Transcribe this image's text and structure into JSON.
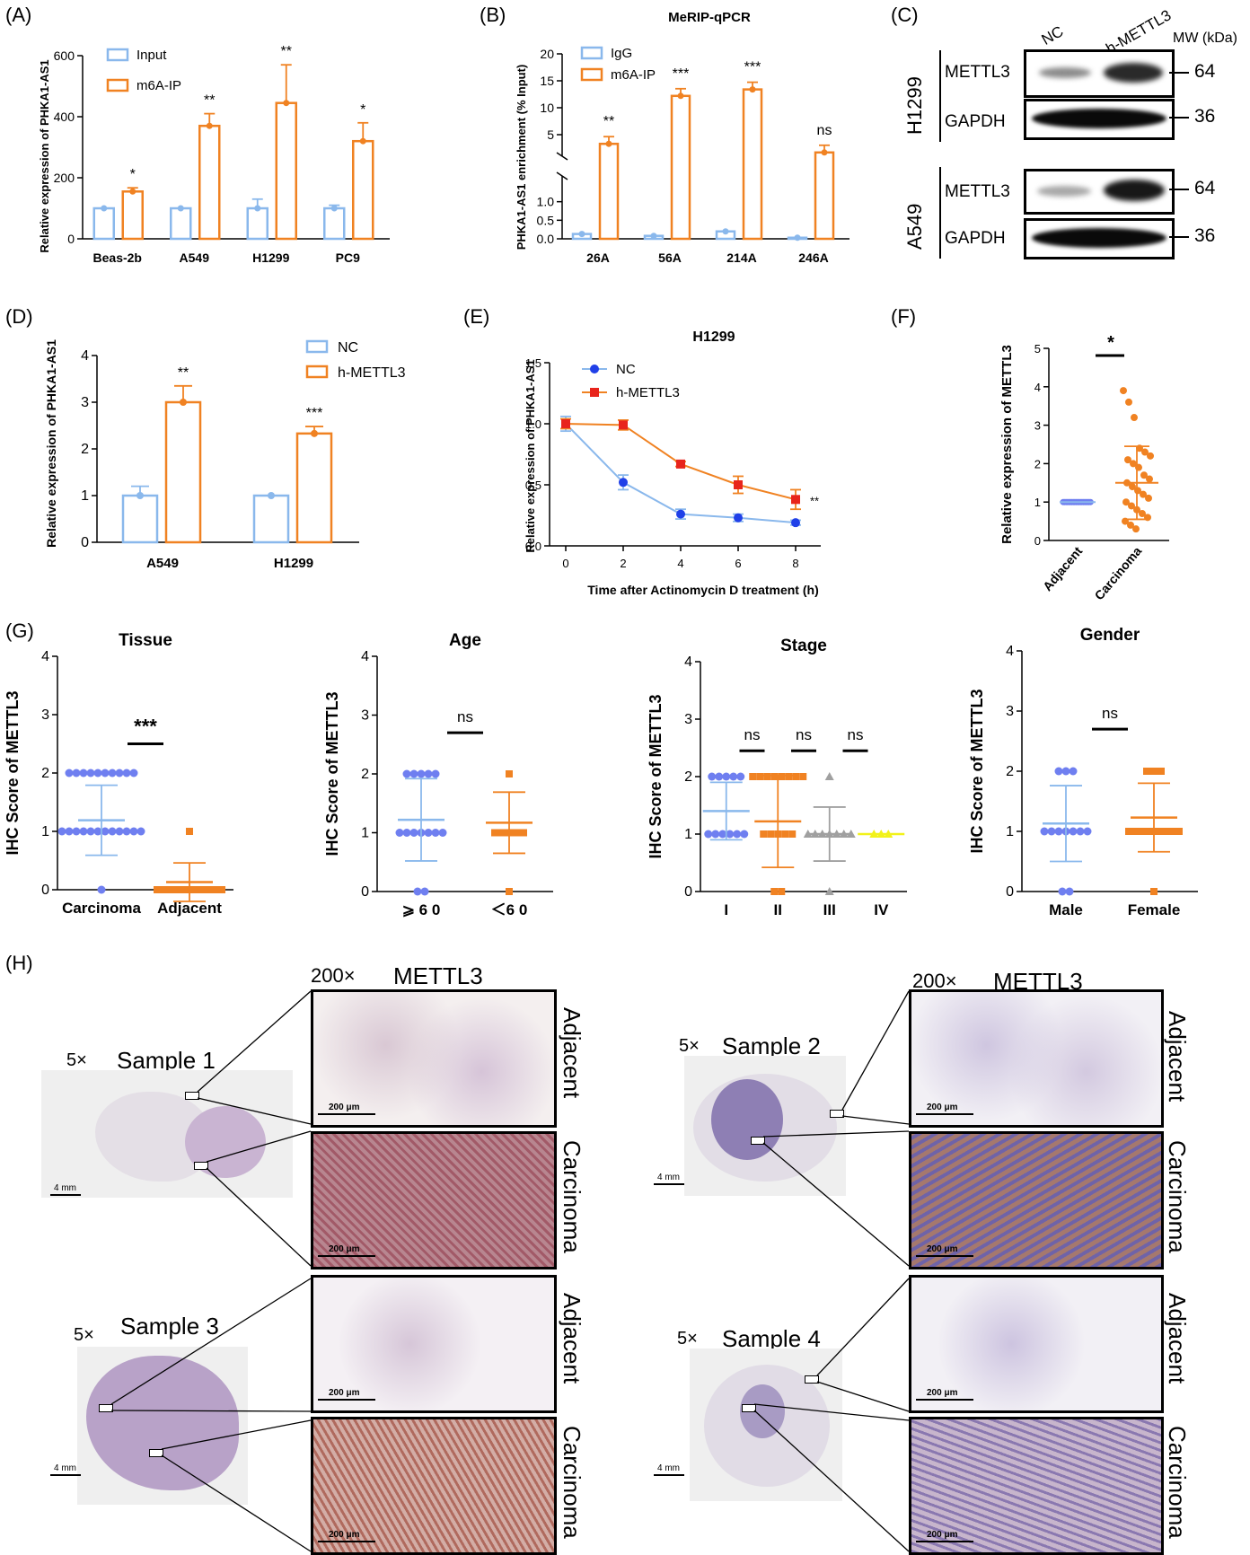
{
  "panels": {
    "A": "(A)",
    "B": "(B)",
    "C": "(C)",
    "D": "(D)",
    "E": "(E)",
    "F": "(F)",
    "G": "(G)",
    "H": "(H)"
  },
  "colors": {
    "blue": "#8ab8ec",
    "orange": "#f08222",
    "blue_dot": "#6f7ff0",
    "red": "#e8241c",
    "dotblue": "#3a4fe0",
    "gray": "#a0a0a0",
    "yellow": "#f2f21a"
  },
  "chart_data": [
    {
      "id": "A",
      "type": "bar",
      "title": "",
      "ylabel": "Relative expression of PHKA1-AS1",
      "categories": [
        "Beas-2b",
        "A549",
        "H1299",
        "PC9"
      ],
      "ylim": [
        0,
        600
      ],
      "yticks": [
        "0",
        "200",
        "400",
        "600"
      ],
      "series": [
        {
          "name": "Input",
          "values": [
            100,
            100,
            100,
            100
          ],
          "err": [
            0,
            0,
            30,
            10
          ]
        },
        {
          "name": "m6A-IP",
          "values": [
            155,
            370,
            445,
            320
          ],
          "err": [
            12,
            40,
            125,
            60
          ]
        }
      ],
      "sig": [
        "*",
        "**",
        "**",
        "*"
      ]
    },
    {
      "id": "B",
      "type": "bar",
      "title": "MeRIP-qPCR",
      "ylabel": "PHKA1-AS1 enrichment (% Input)",
      "categories": [
        "26A",
        "56A",
        "214A",
        "246A"
      ],
      "yticks": [
        "0.0",
        "0.5",
        "1.0",
        "5",
        "10",
        "15",
        "20"
      ],
      "series": [
        {
          "name": "IgG",
          "values": [
            0.13,
            0.08,
            0.2,
            0.03
          ]
        },
        {
          "name": "m6A-IP",
          "values": [
            3.3,
            12.2,
            13.4,
            0.68
          ]
        }
      ],
      "sig": [
        "**",
        "***",
        "***",
        "ns"
      ]
    },
    {
      "id": "D",
      "type": "bar",
      "title": "",
      "ylabel": "Relative expression of PHKA1-AS1",
      "categories": [
        "A549",
        "H1299"
      ],
      "ylim": [
        0,
        4
      ],
      "yticks": [
        "0",
        "1",
        "2",
        "3",
        "4"
      ],
      "series": [
        {
          "name": "NC",
          "values": [
            1.0,
            1.0
          ],
          "err": [
            0.2,
            0.02
          ]
        },
        {
          "name": "h-METTL3",
          "values": [
            3.0,
            2.33
          ],
          "err": [
            0.35,
            0.15
          ]
        }
      ],
      "sig": [
        "**",
        "***"
      ]
    },
    {
      "id": "E",
      "type": "line",
      "title": "H1299",
      "xlabel": "Time after Actinomycin D treatment (h)",
      "ylabel": "Relative expression of PHKA1-AS1",
      "x": [
        0,
        2,
        4,
        6,
        8
      ],
      "xlim": [
        0,
        8
      ],
      "ylim": [
        0,
        1.5
      ],
      "yticks": [
        "0.0",
        "0.5",
        "1.0",
        "1.5"
      ],
      "series": [
        {
          "name": "NC",
          "values": [
            1.0,
            0.52,
            0.26,
            0.23,
            0.19
          ],
          "err": [
            0.06,
            0.06,
            0.04,
            0.03,
            0.02
          ]
        },
        {
          "name": "h-METTL3",
          "values": [
            1.0,
            0.99,
            0.67,
            0.5,
            0.38
          ],
          "err": [
            0.04,
            0.04,
            0.02,
            0.07,
            0.08
          ]
        }
      ],
      "sig": "**"
    },
    {
      "id": "F",
      "type": "scatter",
      "ylabel": "Relative expression of METTL3",
      "categories": [
        "Adjacent",
        "Carcinoma"
      ],
      "ylim": [
        0,
        5
      ],
      "yticks": [
        "0",
        "1",
        "2",
        "3",
        "4",
        "5"
      ],
      "mean": [
        1.0,
        1.5
      ],
      "sd": [
        0.02,
        0.95
      ],
      "points_carcinoma": [
        3.9,
        3.6,
        3.2,
        2.4,
        2.3,
        2.2,
        2.1,
        2.0,
        1.9,
        1.7,
        1.6,
        1.5,
        1.4,
        1.3,
        1.2,
        1.1,
        1.0,
        0.9,
        0.8,
        0.7,
        0.6,
        0.5,
        0.4,
        0.3
      ],
      "sig": "*"
    },
    {
      "id": "G1",
      "type": "scatter",
      "title": "Tissue",
      "ylabel": "IHC Score of METTL3",
      "categories": [
        "Carcinoma",
        "Adjacent"
      ],
      "ylim": [
        0,
        4
      ],
      "yticks": [
        "0",
        "1",
        "2",
        "3",
        "4"
      ],
      "mean": [
        1.19,
        0.13
      ],
      "sd": [
        0.6,
        0.33
      ],
      "sig": "***"
    },
    {
      "id": "G2",
      "type": "scatter",
      "title": "Age",
      "ylabel": "IHC Score of METTL3",
      "categories": [
        "⩾ 6 0",
        "＜6 0"
      ],
      "ylim": [
        0,
        4
      ],
      "yticks": [
        "0",
        "1",
        "2",
        "3",
        "4"
      ],
      "mean": [
        1.22,
        1.17
      ],
      "sd": [
        0.7,
        0.52
      ],
      "sig": "ns"
    },
    {
      "id": "G3",
      "type": "scatter",
      "title": "Stage",
      "ylabel": "IHC Score of METTL3",
      "categories": [
        "I",
        "II",
        "III",
        "IV"
      ],
      "ylim": [
        0,
        4
      ],
      "yticks": [
        "0",
        "1",
        "2",
        "3",
        "4"
      ],
      "mean": [
        1.4,
        1.22,
        1.0,
        1.0
      ],
      "sd": [
        0.5,
        0.8,
        0.47,
        0.0
      ],
      "sig": [
        "ns",
        "ns",
        "ns"
      ]
    },
    {
      "id": "G4",
      "type": "scatter",
      "title": "Gender",
      "ylabel": "IHC Score of METTL3",
      "categories": [
        "Male",
        "Female"
      ],
      "ylim": [
        0,
        4
      ],
      "yticks": [
        "0",
        "1",
        "2",
        "3",
        "4"
      ],
      "mean": [
        1.13,
        1.23
      ],
      "sd": [
        0.63,
        0.57
      ],
      "sig": "ns"
    }
  ],
  "blot": {
    "lanes": [
      "NC",
      "h-METTL3"
    ],
    "mw_header": "MW (kDa)",
    "cells": [
      "H1299",
      "A549"
    ],
    "rows": [
      {
        "label": "METTL3",
        "mw": "64"
      },
      {
        "label": "GAPDH",
        "mw": "36"
      },
      {
        "label": "METTL3",
        "mw": "64"
      },
      {
        "label": "GAPDH",
        "mw": "36"
      }
    ]
  },
  "ihc": {
    "header_mag": "200×",
    "header_marker": "METTL3",
    "whole_mag": "5×",
    "samples": [
      "Sample 1",
      "Sample 2",
      "Sample 3",
      "Sample 4"
    ],
    "region_labels": [
      "Adjacent",
      "Carcinoma"
    ],
    "scale_small": "200 μm",
    "scale_large": "4 mm"
  }
}
